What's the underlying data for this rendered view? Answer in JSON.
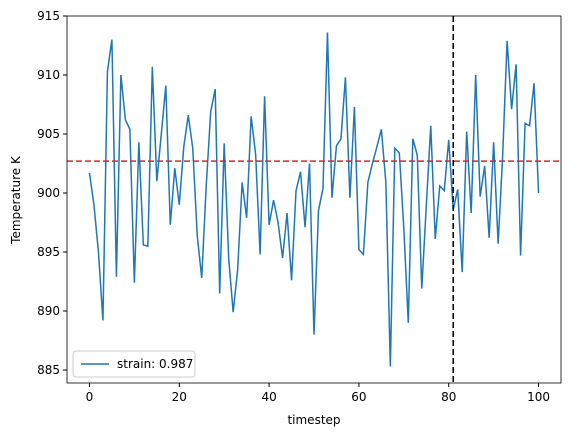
{
  "chart_data": {
    "type": "line",
    "x_label": "timestep",
    "y_label": "Temperature K",
    "x": [
      0,
      1,
      2,
      3,
      4,
      5,
      6,
      7,
      8,
      9,
      10,
      11,
      12,
      13,
      14,
      15,
      16,
      17,
      18,
      19,
      20,
      21,
      22,
      23,
      24,
      25,
      26,
      27,
      28,
      29,
      30,
      31,
      32,
      33,
      34,
      35,
      36,
      37,
      38,
      39,
      40,
      41,
      42,
      43,
      44,
      45,
      46,
      47,
      48,
      49,
      50,
      51,
      52,
      53,
      54,
      55,
      56,
      57,
      58,
      59,
      60,
      61,
      62,
      63,
      64,
      65,
      66,
      67,
      68,
      69,
      70,
      71,
      72,
      73,
      74,
      75,
      76,
      77,
      78,
      79,
      80,
      81,
      82,
      83,
      84,
      85,
      86,
      87,
      88,
      89,
      90,
      91,
      92,
      93,
      94,
      95,
      96,
      97,
      98,
      99,
      100
    ],
    "series": [
      {
        "name": "strain: 0.987",
        "color": "#1f77b4",
        "values": [
          901.7,
          899,
          895,
          889.2,
          910.3,
          913,
          892.9,
          910,
          906.2,
          905.4,
          892.4,
          904.3,
          895.6,
          895.5,
          910.7,
          901,
          905,
          909.1,
          897.3,
          902.1,
          899,
          903.9,
          906.6,
          903.8,
          896.4,
          892.8,
          900.6,
          906.9,
          908.8,
          891.5,
          904.2,
          894.5,
          889.9,
          893.5,
          900.9,
          897.9,
          906.5,
          903.3,
          894.8,
          908.2,
          897.3,
          899.4,
          897.5,
          894.5,
          898.3,
          892.6,
          900.2,
          901.8,
          897.1,
          902.5,
          888,
          898.5,
          900.4,
          913.6,
          899.6,
          904,
          904.6,
          909.8,
          899.6,
          907.3,
          895.2,
          894.8,
          900.9,
          902.5,
          903.9,
          905.4,
          900.9,
          885.3,
          903.8,
          903.4,
          897,
          889,
          904.6,
          903.2,
          891.9,
          898.9,
          905.7,
          896.1,
          900.6,
          900.2,
          904.5,
          898.6,
          900.3,
          893.3,
          905.2,
          898.3,
          910,
          899.7,
          902.3,
          896.2,
          904.3,
          895.7,
          903.1,
          912.9,
          907.1,
          910.9,
          894.7,
          905.9,
          905.7,
          909.3,
          900
        ]
      }
    ],
    "hline": {
      "value": 902.7,
      "color": "#d62728"
    },
    "vline": {
      "value": 81,
      "color": "#000000"
    },
    "xlim": [
      -5,
      105
    ],
    "xticks": [
      0,
      20,
      40,
      60,
      80,
      100
    ],
    "ylim": [
      883.9,
      915
    ],
    "yticks": [
      885,
      890,
      895,
      900,
      905,
      910,
      915
    ],
    "legend": "lower left"
  }
}
